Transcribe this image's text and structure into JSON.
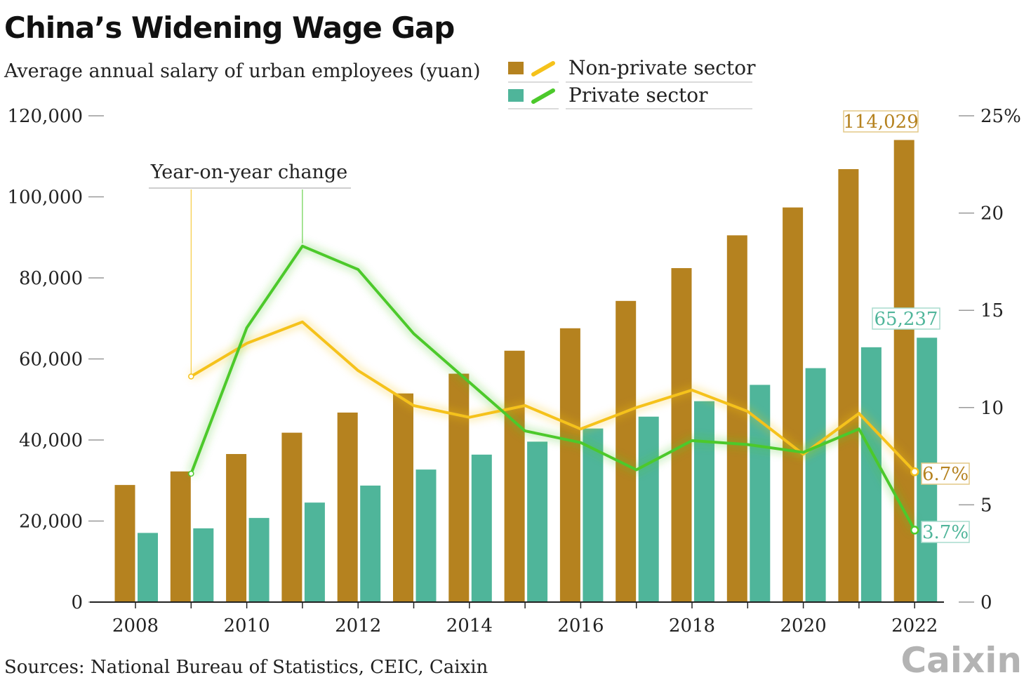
{
  "chart_data": {
    "type": "bar",
    "title": "China’s Widening Wage Gap",
    "subtitle": "Average annual salary of urban employees (yuan)",
    "categories": [
      "2008",
      "2009",
      "2010",
      "2011",
      "2012",
      "2013",
      "2014",
      "2015",
      "2016",
      "2017",
      "2018",
      "2019",
      "2020",
      "2021",
      "2022"
    ],
    "x_tick_labels": [
      "2008",
      "2010",
      "2012",
      "2014",
      "2016",
      "2018",
      "2020",
      "2022"
    ],
    "y_left": {
      "ylim": [
        0,
        120000
      ],
      "ticks": [
        0,
        20000,
        40000,
        60000,
        80000,
        100000,
        120000
      ],
      "tick_labels": [
        "0",
        "20,000",
        "40,000",
        "60,000",
        "80,000",
        "100,000",
        "120,000"
      ]
    },
    "y_right": {
      "ylim": [
        0,
        25
      ],
      "ticks": [
        0,
        5,
        10,
        15,
        20,
        25
      ],
      "tick_labels": [
        "0",
        "5",
        "10",
        "15",
        "20",
        "25%"
      ]
    },
    "bar_series": [
      {
        "name": "Non-private sector",
        "color": "#b5821f",
        "values": [
          28898,
          32244,
          36539,
          41799,
          46769,
          51483,
          56360,
          62029,
          67569,
          74318,
          82413,
          90501,
          97379,
          106837,
          114029
        ]
      },
      {
        "name": "Private sector",
        "color": "#4fb59a",
        "values": [
          17071,
          18199,
          20759,
          24556,
          28752,
          32706,
          36390,
          39589,
          42833,
          45761,
          49575,
          53604,
          57727,
          62884,
          65237
        ]
      }
    ],
    "line_series": [
      {
        "name": "Non-private sector",
        "color": "#f5c21b",
        "x": [
          "2009",
          "2010",
          "2011",
          "2012",
          "2013",
          "2014",
          "2015",
          "2016",
          "2017",
          "2018",
          "2019",
          "2020",
          "2021",
          "2022"
        ],
        "values": [
          11.6,
          13.3,
          14.4,
          11.9,
          10.1,
          9.5,
          10.1,
          8.9,
          10.0,
          10.9,
          9.8,
          7.6,
          9.7,
          6.7
        ]
      },
      {
        "name": "Private sector",
        "color": "#4cc92b",
        "x": [
          "2009",
          "2010",
          "2011",
          "2012",
          "2013",
          "2014",
          "2015",
          "2016",
          "2017",
          "2018",
          "2019",
          "2020",
          "2021",
          "2022"
        ],
        "values": [
          6.6,
          14.1,
          18.3,
          17.1,
          13.8,
          11.3,
          8.8,
          8.2,
          6.8,
          8.3,
          8.1,
          7.7,
          8.9,
          3.7
        ]
      }
    ],
    "annotations": {
      "yoy_label": "Year-on-year change",
      "nonprivate_last_bar": "114,029",
      "private_last_bar": "65,237",
      "nonprivate_last_pct": "6.7%",
      "private_last_pct": "3.7%"
    },
    "legend": {
      "placement": "top-center",
      "items": [
        "Non-private sector",
        "Private sector"
      ]
    },
    "grid": false
  },
  "footer": {
    "source": "Sources: National Bureau of Statistics, CEIC, Caixin",
    "logo": "Caixin"
  }
}
